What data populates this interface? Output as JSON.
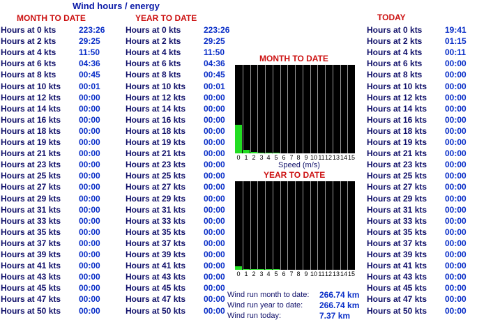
{
  "page": {
    "title": "Wind hours / energy"
  },
  "headers": {
    "month": "MONTH TO DATE",
    "year": "YEAR TO DATE",
    "today": "TODAY"
  },
  "rows": [
    {
      "label": "Hours at 0 kts",
      "month": "223:26",
      "year": "223:26",
      "today": "19:41"
    },
    {
      "label": "Hours at 2 kts",
      "month": "29:25",
      "year": "29:25",
      "today": "01:15"
    },
    {
      "label": "Hours at 4 kts",
      "month": "11:50",
      "year": "11:50",
      "today": "00:11"
    },
    {
      "label": "Hours at 6 kts",
      "month": "04:36",
      "year": "04:36",
      "today": "00:00"
    },
    {
      "label": "Hours at 8 kts",
      "month": "00:45",
      "year": "00:45",
      "today": "00:00"
    },
    {
      "label": "Hours at 10 kts",
      "month": "00:01",
      "year": "00:01",
      "today": "00:00"
    },
    {
      "label": "Hours at 12 kts",
      "month": "00:00",
      "year": "00:00",
      "today": "00:00"
    },
    {
      "label": "Hours at 14 kts",
      "month": "00:00",
      "year": "00:00",
      "today": "00:00"
    },
    {
      "label": "Hours at 16 kts",
      "month": "00:00",
      "year": "00:00",
      "today": "00:00"
    },
    {
      "label": "Hours at 18 kts",
      "month": "00:00",
      "year": "00:00",
      "today": "00:00"
    },
    {
      "label": "Hours at 19 kts",
      "month": "00:00",
      "year": "00:00",
      "today": "00:00"
    },
    {
      "label": "Hours at 21 kts",
      "month": "00:00",
      "year": "00:00",
      "today": "00:00"
    },
    {
      "label": "Hours at 23 kts",
      "month": "00:00",
      "year": "00:00",
      "today": "00:00"
    },
    {
      "label": "Hours at 25 kts",
      "month": "00:00",
      "year": "00:00",
      "today": "00:00"
    },
    {
      "label": "Hours at 27 kts",
      "month": "00:00",
      "year": "00:00",
      "today": "00:00"
    },
    {
      "label": "Hours at 29 kts",
      "month": "00:00",
      "year": "00:00",
      "today": "00:00"
    },
    {
      "label": "Hours at 31 kts",
      "month": "00:00",
      "year": "00:00",
      "today": "00:00"
    },
    {
      "label": "Hours at 33 kts",
      "month": "00:00",
      "year": "00:00",
      "today": "00:00"
    },
    {
      "label": "Hours at 35 kts",
      "month": "00:00",
      "year": "00:00",
      "today": "00:00"
    },
    {
      "label": "Hours at 37 kts",
      "month": "00:00",
      "year": "00:00",
      "today": "00:00"
    },
    {
      "label": "Hours at 39 kts",
      "month": "00:00",
      "year": "00:00",
      "today": "00:00"
    },
    {
      "label": "Hours at 41 kts",
      "month": "00:00",
      "year": "00:00",
      "today": "00:00"
    },
    {
      "label": "Hours at 43 kts",
      "month": "00:00",
      "year": "00:00",
      "today": "00:00"
    },
    {
      "label": "Hours at 45 kts",
      "month": "00:00",
      "year": "00:00",
      "today": "00:00"
    },
    {
      "label": "Hours at 47 kts",
      "month": "00:00",
      "year": "00:00",
      "today": "00:00"
    },
    {
      "label": "Hours at 50 kts",
      "month": "00:00",
      "year": "00:00",
      "today": "00:00"
    }
  ],
  "charts": {
    "month_title": "MONTH TO DATE",
    "year_title": "YEAR TO DATE",
    "speed_label": "Speed (m/s)",
    "ticks": [
      "0",
      "1",
      "2",
      "3",
      "4",
      "5",
      "6",
      "7",
      "8",
      "9",
      "10",
      "11",
      "12",
      "13",
      "14",
      "15"
    ]
  },
  "chart_data": [
    {
      "type": "bar",
      "title": "MONTH TO DATE",
      "xlabel": "Speed (m/s)",
      "categories": [
        "0",
        "1",
        "2",
        "3",
        "4",
        "5",
        "6",
        "7",
        "8",
        "9",
        "10",
        "11",
        "12",
        "13",
        "14",
        "15"
      ],
      "values": [
        223.4,
        29.4,
        11.8,
        4.6,
        0.75,
        0.02,
        0,
        0,
        0,
        0,
        0,
        0,
        0,
        0,
        0,
        0
      ],
      "ylim": [
        0,
        700
      ]
    },
    {
      "type": "bar",
      "title": "YEAR TO DATE",
      "categories": [
        "0",
        "1",
        "2",
        "3",
        "4",
        "5",
        "6",
        "7",
        "8",
        "9",
        "10",
        "11",
        "12",
        "13",
        "14",
        "15"
      ],
      "values": [
        223.4,
        29.4,
        11.8,
        4.6,
        0.75,
        0.02,
        0,
        0,
        0,
        0,
        0,
        0,
        0,
        0,
        0,
        0
      ],
      "ylim": [
        0,
        6000
      ]
    }
  ],
  "summary": [
    {
      "label": "Wind run month to date:",
      "value": "266.74 km"
    },
    {
      "label": "Wind run year to date:",
      "value": "266.74 km"
    },
    {
      "label": "Wind run today:",
      "value": "7.37 km"
    }
  ],
  "colors": {
    "bar": "#22dd22",
    "chart_bg": "#000000",
    "header_red": "#cc1111",
    "value_blue": "#0a2fc8"
  }
}
